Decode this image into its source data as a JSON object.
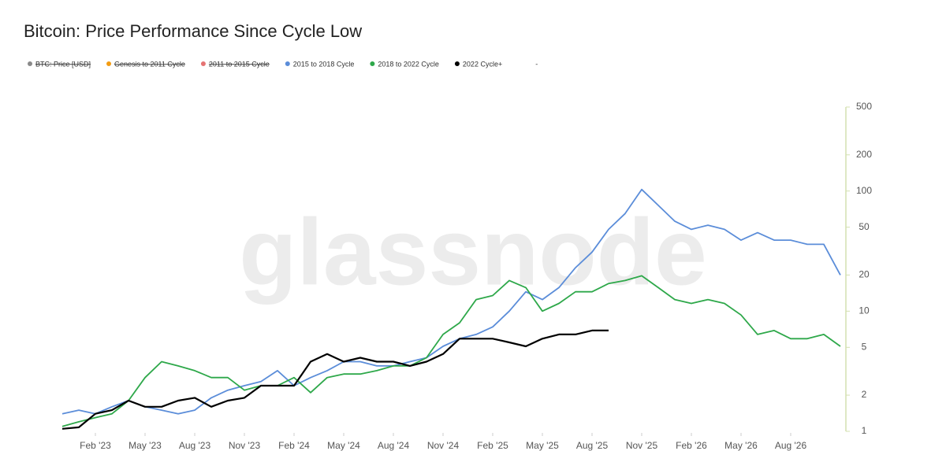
{
  "chart_data": {
    "type": "line",
    "title": "Bitcoin: Price Performance Since Cycle Low",
    "watermark": "glassnode",
    "log_scale": true,
    "x": [
      "2022-12",
      "2023-01",
      "2023-02",
      "2023-03",
      "2023-04",
      "2023-05",
      "2023-06",
      "2023-07",
      "2023-08",
      "2023-09",
      "2023-10",
      "2023-11",
      "2023-12",
      "2024-01",
      "2024-02",
      "2024-03",
      "2024-04",
      "2024-05",
      "2024-06",
      "2024-07",
      "2024-08",
      "2024-09",
      "2024-10",
      "2024-11",
      "2024-12",
      "2025-01",
      "2025-02",
      "2025-03",
      "2025-04",
      "2025-05",
      "2025-06",
      "2025-07",
      "2025-08",
      "2025-09",
      "2025-10",
      "2025-11",
      "2025-12",
      "2026-01",
      "2026-02",
      "2026-03",
      "2026-04",
      "2026-05",
      "2026-06",
      "2026-07",
      "2026-08",
      "2026-09",
      "2026-10",
      "2026-11"
    ],
    "xlim": [
      "2022-12",
      "2026-11"
    ],
    "xticks": [
      {
        "value": "2023-02",
        "label": "Feb '23"
      },
      {
        "value": "2023-05",
        "label": "May '23"
      },
      {
        "value": "2023-08",
        "label": "Aug '23"
      },
      {
        "value": "2023-11",
        "label": "Nov '23"
      },
      {
        "value": "2024-02",
        "label": "Feb '24"
      },
      {
        "value": "2024-05",
        "label": "May '24"
      },
      {
        "value": "2024-08",
        "label": "Aug '24"
      },
      {
        "value": "2024-11",
        "label": "Nov '24"
      },
      {
        "value": "2025-02",
        "label": "Feb '25"
      },
      {
        "value": "2025-05",
        "label": "May '25"
      },
      {
        "value": "2025-08",
        "label": "Aug '25"
      },
      {
        "value": "2025-11",
        "label": "Nov '25"
      },
      {
        "value": "2026-02",
        "label": "Feb '26"
      },
      {
        "value": "2026-05",
        "label": "May '26"
      },
      {
        "value": "2026-08",
        "label": "Aug '26"
      }
    ],
    "ylim": [
      1,
      500
    ],
    "yticks": [
      1,
      2,
      5,
      10,
      20,
      50,
      100,
      200,
      500
    ],
    "legend_hidden": [
      {
        "name": "BTC: Price [USD]",
        "color": "#8a8a8a"
      },
      {
        "name": "Genesis to 2011 Cycle",
        "color": "#f39c12"
      },
      {
        "name": "2011 to 2015 Cycle",
        "color": "#e57373"
      }
    ],
    "legend_extra": "-",
    "series": [
      {
        "name": "2015 to 2018 Cycle",
        "color": "#5b8dd9",
        "values": [
          1.4,
          1.5,
          1.4,
          1.6,
          1.8,
          1.6,
          1.5,
          1.4,
          1.5,
          1.9,
          2.2,
          2.4,
          2.6,
          3.2,
          2.4,
          2.8,
          3.2,
          3.8,
          3.8,
          3.5,
          3.5,
          3.8,
          4.1,
          5.1,
          5.9,
          6.4,
          7.4,
          10,
          14.5,
          12.5,
          15.7,
          23,
          31,
          48,
          65,
          103,
          76,
          56,
          48,
          52,
          48,
          39,
          45,
          39,
          39,
          36,
          36,
          20
        ]
      },
      {
        "name": "2018 to 2022 Cycle",
        "color": "#2ea84a",
        "values": [
          1.1,
          1.2,
          1.3,
          1.4,
          1.8,
          2.8,
          3.8,
          3.5,
          3.2,
          2.8,
          2.8,
          2.2,
          2.4,
          2.4,
          2.8,
          2.1,
          2.8,
          3,
          3,
          3.2,
          3.5,
          3.5,
          4.1,
          6.4,
          8,
          12.5,
          13.5,
          18,
          15.7,
          10,
          11.6,
          14.5,
          14.5,
          17,
          18,
          19.7,
          15.7,
          12.5,
          11.6,
          12.5,
          11.6,
          9.3,
          6.4,
          6.9,
          5.9,
          5.9,
          6.4,
          5.1
        ]
      },
      {
        "name": "2022 Cycle+",
        "color": "#000000",
        "values": [
          1.05,
          1.08,
          1.4,
          1.5,
          1.8,
          1.6,
          1.6,
          1.8,
          1.9,
          1.6,
          1.8,
          1.9,
          2.4,
          2.4,
          2.4,
          3.8,
          4.4,
          3.8,
          4.1,
          3.8,
          3.8,
          3.5,
          3.8,
          4.4,
          5.9,
          5.9,
          5.9,
          5.5,
          5.1,
          5.9,
          6.4,
          6.4,
          6.9,
          6.9,
          null,
          null,
          null,
          null,
          null,
          null,
          null,
          null,
          null,
          null,
          null,
          null,
          null,
          null
        ]
      }
    ]
  }
}
